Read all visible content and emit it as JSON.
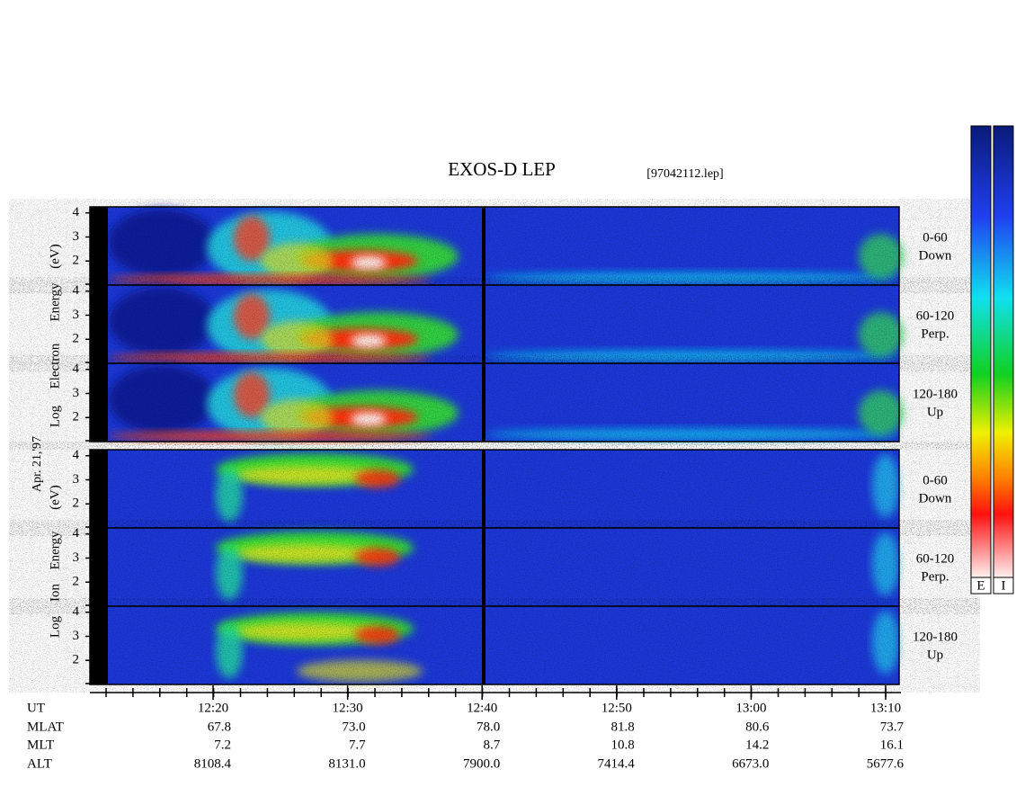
{
  "title": "EXOS-D LEP",
  "file": "[97042112.lep]",
  "date": "Apr. 21,'97",
  "ylim": [
    1,
    4.25
  ],
  "yticks": [
    2,
    3,
    4
  ],
  "electron": {
    "axis_words": [
      "Log",
      "Electron",
      "Energy",
      "(eV)"
    ],
    "pitch": [
      {
        "range": "0-60",
        "dir": "Down"
      },
      {
        "range": "60-120",
        "dir": "Perp."
      },
      {
        "range": "120-180",
        "dir": "Up"
      }
    ]
  },
  "ion": {
    "axis_words": [
      "Log",
      "Ion",
      "Energy",
      "(eV)"
    ],
    "pitch": [
      {
        "range": "0-60",
        "dir": "Down"
      },
      {
        "range": "60-120",
        "dir": "Perp."
      },
      {
        "range": "120-180",
        "dir": "Up"
      }
    ]
  },
  "colorbar_labels": [
    "E",
    "I"
  ],
  "orbit": [
    {
      "name": "UT",
      "values": [
        "12:20",
        "12:30",
        "12:40",
        "12:50",
        "13:00",
        "13:10"
      ]
    },
    {
      "name": "MLAT",
      "values": [
        "67.8",
        "73.0",
        "78.0",
        "81.8",
        "80.6",
        "73.7"
      ]
    },
    {
      "name": "MLT",
      "values": [
        "7.2",
        "7.7",
        "8.7",
        "10.8",
        "14.2",
        "16.1"
      ]
    },
    {
      "name": "ALT",
      "values": [
        "8108.4",
        "8131.0",
        "7900.0",
        "7414.4",
        "6673.0",
        "5677.6"
      ]
    }
  ]
}
